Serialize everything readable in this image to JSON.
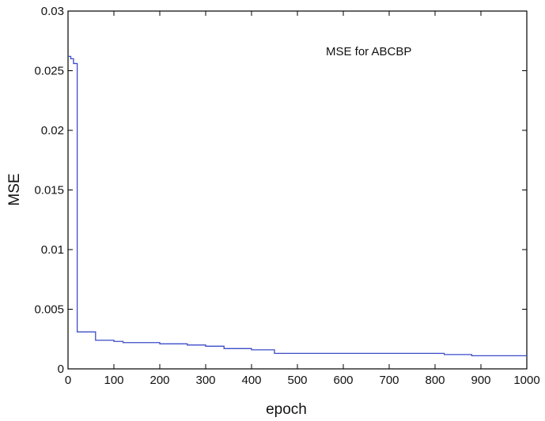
{
  "chart_data": {
    "type": "line",
    "xlabel": "epoch",
    "ylabel": "MSE",
    "xlim": [
      0,
      1000
    ],
    "ylim": [
      0,
      0.03
    ],
    "x_ticks": [
      0,
      100,
      200,
      300,
      400,
      500,
      600,
      700,
      800,
      900,
      1000
    ],
    "x_tick_labels": [
      "0",
      "100",
      "200",
      "300",
      "400",
      "500",
      "600",
      "700",
      "800",
      "900",
      "1000"
    ],
    "y_ticks": [
      0,
      0.005,
      0.01,
      0.015,
      0.02,
      0.025,
      0.03
    ],
    "y_tick_labels": [
      "0",
      "0.005",
      "0.01",
      "0.015",
      "0.02",
      "0.025",
      "0.03"
    ],
    "grid": false,
    "annotation": "MSE for ABCBP",
    "series": [
      {
        "color": "#3b4bc8",
        "x": [
          0,
          6,
          12,
          20,
          60,
          100,
          120,
          200,
          260,
          300,
          340,
          400,
          450,
          820,
          880,
          1000
        ],
        "y": [
          0.0262,
          0.026,
          0.0256,
          0.0031,
          0.0024,
          0.0023,
          0.0022,
          0.0021,
          0.002,
          0.0019,
          0.0017,
          0.0016,
          0.0013,
          0.0012,
          0.0011,
          0.0011
        ]
      }
    ]
  }
}
